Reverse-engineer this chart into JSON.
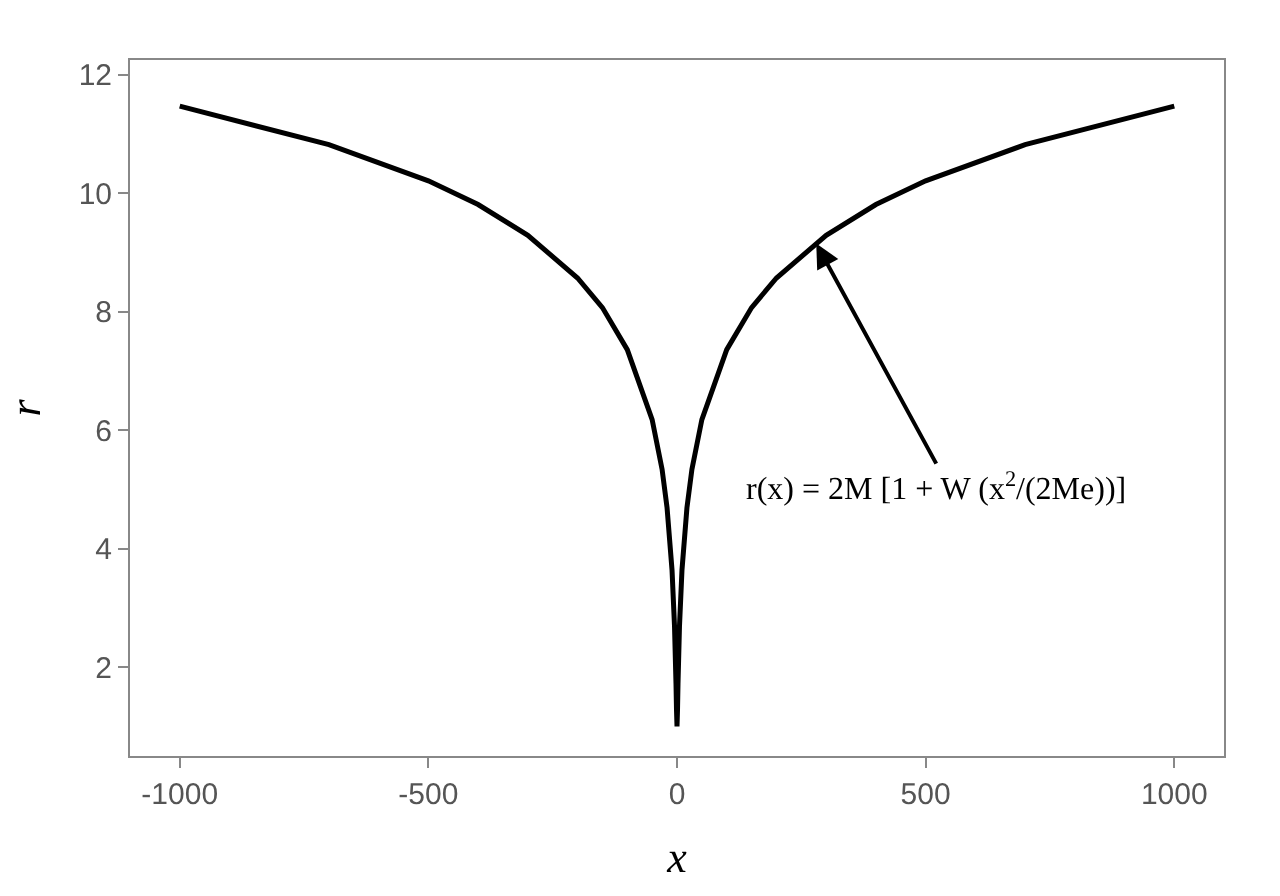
{
  "chart_data": {
    "type": "line",
    "xlabel": "x",
    "ylabel": "r",
    "x": [
      -1000,
      -700,
      -500,
      -400,
      -300,
      -200,
      -150,
      -100,
      -50,
      -30,
      -20,
      -10,
      -5,
      -2,
      -1,
      0,
      1,
      2,
      5,
      10,
      20,
      30,
      50,
      100,
      150,
      200,
      300,
      400,
      500,
      700,
      1000
    ],
    "series": [
      {
        "color": "#000000",
        "values": [
          11.47,
          10.82,
          10.21,
          9.81,
          9.29,
          8.57,
          8.07,
          7.36,
          6.18,
          5.34,
          4.69,
          3.64,
          2.69,
          1.72,
          1.28,
          1.0,
          1.28,
          1.72,
          2.69,
          3.64,
          4.69,
          5.34,
          6.18,
          7.36,
          8.07,
          8.57,
          9.29,
          9.81,
          10.21,
          10.82,
          11.47
        ]
      }
    ],
    "xlim": [
      -1100,
      1100
    ],
    "ylim": [
      0.5,
      12.25
    ],
    "xticks": [
      -1000,
      -500,
      0,
      500,
      1000
    ],
    "yticks": [
      2,
      4,
      6,
      8,
      10,
      12
    ],
    "marker": "none",
    "line_style": "solid",
    "annotations": [
      {
        "text": "r(x) = 2M [1 + W (x$^{2}$/(2Me))]",
        "x": 280,
        "y": 9.15
      }
    ]
  }
}
